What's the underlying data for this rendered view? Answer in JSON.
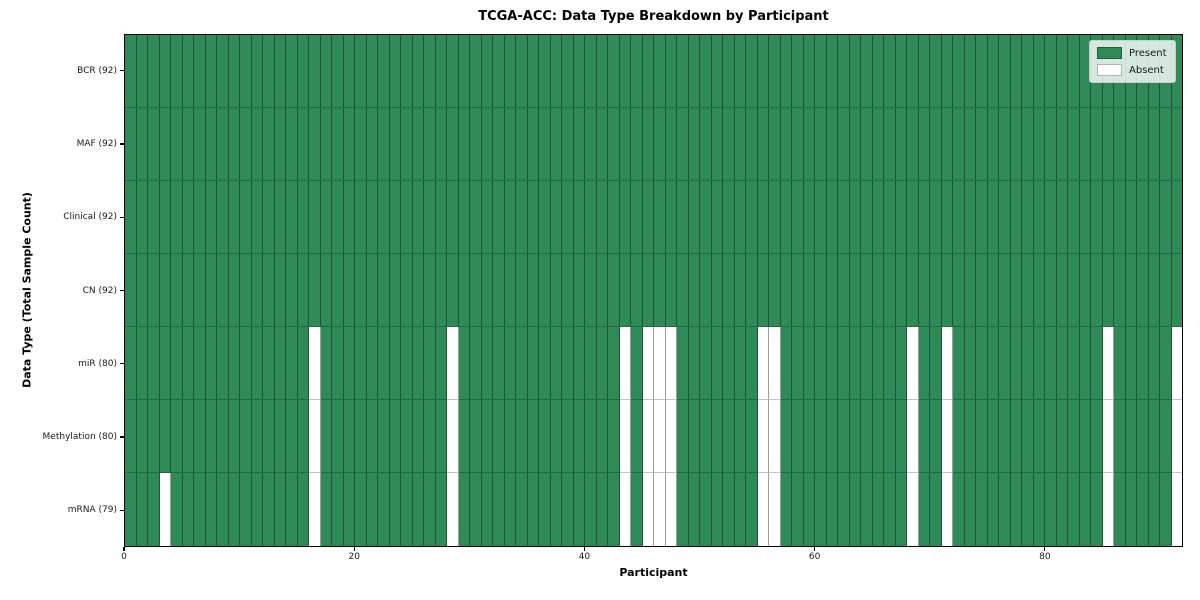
{
  "figure": {
    "title": "TCGA-ACC: Data Type Breakdown by Participant",
    "xlabel": "Participant",
    "ylabel": "Data Type (Total Sample Count)"
  },
  "chart_data": {
    "type": "heatmap",
    "title": "TCGA-ACC: Data Type Breakdown by Participant",
    "xlabel": "Participant",
    "ylabel": "Data Type (Total Sample Count)",
    "n_participants": 92,
    "x_ticks": [
      0,
      20,
      40,
      60,
      80
    ],
    "xlim": [
      0,
      92
    ],
    "grid": "cell-edges",
    "rows": [
      {
        "label": "BCR (92)",
        "present_count": 92,
        "absent_participants": []
      },
      {
        "label": "MAF (92)",
        "present_count": 92,
        "absent_participants": []
      },
      {
        "label": "Clinical (92)",
        "present_count": 92,
        "absent_participants": []
      },
      {
        "label": "CN (92)",
        "present_count": 92,
        "absent_participants": []
      },
      {
        "label": "miR (80)",
        "present_count": 80,
        "absent_participants": [
          16,
          28,
          43,
          45,
          46,
          47,
          55,
          56,
          68,
          71,
          85,
          91
        ]
      },
      {
        "label": "Methylation (80)",
        "present_count": 80,
        "absent_participants": [
          16,
          28,
          43,
          45,
          46,
          47,
          55,
          56,
          68,
          71,
          85,
          91
        ]
      },
      {
        "label": "mRNA (79)",
        "present_count": 79,
        "absent_participants": [
          3,
          16,
          28,
          43,
          45,
          46,
          47,
          55,
          56,
          68,
          71,
          85,
          91
        ]
      }
    ],
    "legend": {
      "position": "upper right",
      "entries": [
        {
          "label": "Present",
          "color": "#2e8b57"
        },
        {
          "label": "Absent",
          "color": "#ffffff"
        }
      ]
    },
    "colors": {
      "present": "#2e8b57",
      "absent": "#ffffff",
      "spine": "#000000",
      "tick_label": "#1a1a1a"
    }
  }
}
